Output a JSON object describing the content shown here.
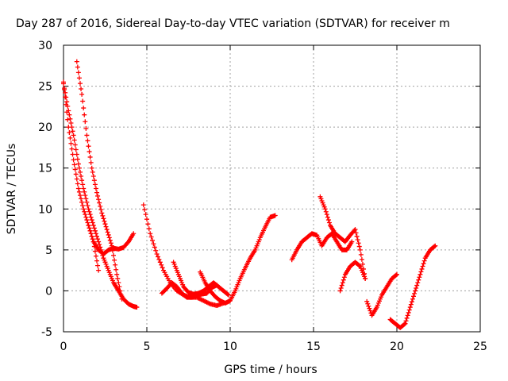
{
  "chart_data": {
    "type": "scatter",
    "title": "Day 287 of 2016, Sidereal Day-to-day VTEC variation (SDTVAR) for receiver m",
    "xlabel": "GPS time / hours",
    "ylabel": "SDTVAR / TECUs",
    "xlim": [
      0,
      25
    ],
    "ylim": [
      -5,
      30
    ],
    "xticks": [
      0,
      5,
      10,
      15,
      20,
      25
    ],
    "yticks": [
      -5,
      0,
      5,
      10,
      15,
      20,
      25,
      30
    ],
    "grid": true,
    "marker": "+",
    "color": "#ff0000",
    "series": [
      {
        "x": [
          0.0,
          0.3,
          0.6,
          0.9,
          1.2,
          1.5,
          1.8,
          2.1
        ],
        "y": [
          25.5,
          20,
          16,
          12.5,
          10,
          8,
          6,
          2.5
        ]
      },
      {
        "x": [
          0.0,
          0.3,
          0.6,
          0.9,
          1.2,
          1.5,
          1.8,
          2.1,
          2.4,
          2.7,
          3.0,
          3.3,
          3.6,
          3.9,
          4.2,
          4.4
        ],
        "y": [
          25.3,
          22,
          19,
          15.5,
          12.5,
          10,
          8,
          6,
          4,
          2.5,
          1,
          0,
          -1,
          -1.6,
          -1.9,
          -2
        ]
      },
      {
        "x": [
          0.8,
          1.1,
          1.4,
          1.7,
          2.0,
          2.3,
          2.6,
          2.9,
          3.2,
          3.5
        ],
        "y": [
          28,
          24,
          19,
          15,
          12,
          9.5,
          7.5,
          5.5,
          2,
          -1
        ]
      },
      {
        "x": [
          1.5,
          1.8,
          2.1,
          2.4,
          2.7,
          3.0,
          3.3,
          3.6,
          3.9,
          4.2
        ],
        "y": [
          8,
          6,
          5,
          4.5,
          5,
          5.2,
          5.1,
          5.3,
          6,
          7
        ]
      },
      {
        "x": [
          4.8,
          5.2,
          5.6,
          6.0,
          6.4,
          6.8,
          7.2,
          7.6,
          8.0,
          8.4,
          8.8,
          9.2,
          9.6
        ],
        "y": [
          10.5,
          7,
          4.5,
          2.5,
          1,
          0,
          -0.5,
          -0.8,
          -0.8,
          -1.2,
          -1.6,
          -1.8,
          -1.5
        ]
      },
      {
        "x": [
          5.9,
          6.2,
          6.5,
          6.8,
          7.1,
          7.4,
          7.7,
          8.0,
          8.3,
          8.6,
          8.9,
          9.2
        ],
        "y": [
          -0.3,
          0.3,
          1,
          0.5,
          -0.3,
          -0.8,
          -0.8,
          -0.6,
          -0.4,
          -0.3,
          0.4,
          0.7
        ]
      },
      {
        "x": [
          6.6,
          6.9,
          7.2,
          7.5,
          7.8,
          8.1,
          8.4,
          8.7,
          9.0,
          9.3,
          9.6,
          9.9
        ],
        "y": [
          3.5,
          2,
          0.5,
          -0.2,
          -0.4,
          -0.3,
          0,
          0.5,
          1,
          0.5,
          0,
          -0.5
        ]
      },
      {
        "x": [
          8.2,
          8.5,
          8.8,
          9.1,
          9.4,
          9.7,
          10.0,
          10.3,
          10.6,
          10.9,
          11.2,
          11.5,
          11.8,
          12.1,
          12.4,
          12.7
        ],
        "y": [
          2.3,
          1,
          0,
          -0.7,
          -1.2,
          -1.5,
          -1.2,
          0,
          1.5,
          2.8,
          4,
          5,
          6.5,
          7.8,
          9,
          9.2
        ]
      },
      {
        "x": [
          13.7,
          14.0,
          14.3,
          14.6,
          14.9,
          15.2,
          15.5,
          15.8,
          16.1,
          16.4,
          16.7,
          17.0,
          17.3
        ],
        "y": [
          3.8,
          5,
          6,
          6.5,
          7,
          6.8,
          5.5,
          6.5,
          7,
          6,
          5,
          5,
          6
        ]
      },
      {
        "x": [
          15.4,
          15.7,
          16.0,
          16.3,
          16.6,
          16.9,
          17.2,
          17.5,
          17.8,
          18.1
        ],
        "y": [
          11.5,
          10,
          8,
          7,
          6.5,
          6,
          6.8,
          7.5,
          5,
          1.5
        ]
      },
      {
        "x": [
          16.6,
          16.9,
          17.2,
          17.5,
          17.8,
          18.1
        ],
        "y": [
          0,
          2,
          3,
          3.5,
          3,
          1.5
        ]
      },
      {
        "x": [
          18.2,
          18.5,
          18.8,
          19.1,
          19.4,
          19.7,
          20.0
        ],
        "y": [
          -1.3,
          -3,
          -2,
          -0.5,
          0.5,
          1.5,
          2
        ]
      },
      {
        "x": [
          19.6,
          19.9,
          20.2,
          20.5,
          20.8,
          21.1,
          21.4,
          21.7,
          22.0,
          22.3
        ],
        "y": [
          -3.5,
          -4,
          -4.5,
          -4,
          -2,
          0,
          2,
          4,
          5,
          5.5
        ]
      }
    ]
  }
}
